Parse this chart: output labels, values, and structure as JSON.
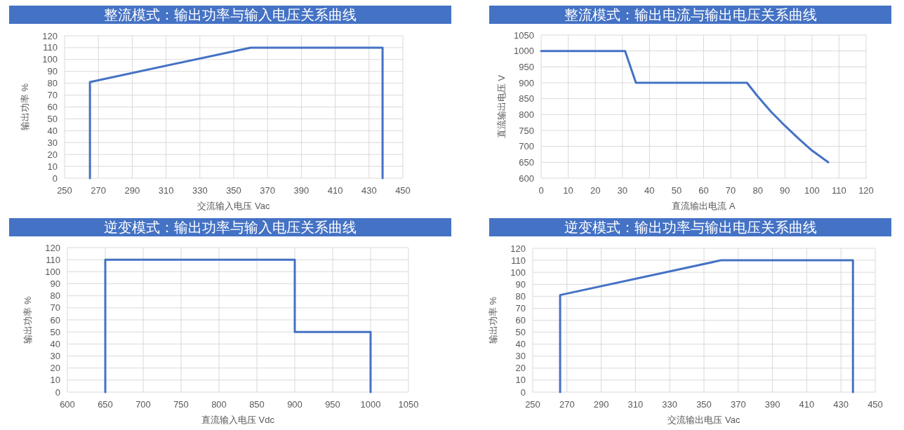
{
  "chart_data": [
    {
      "type": "line",
      "title": "整流模式：输出功率与输入电压关系曲线",
      "xlabel": "交流输入电压 Vac",
      "ylabel": "输出功率 %",
      "color": "#4472c4",
      "grid": true,
      "x": [
        265,
        265,
        360,
        438,
        438
      ],
      "values": [
        0,
        81,
        110,
        110,
        0
      ],
      "xlim": [
        250,
        450
      ],
      "ylim": [
        0,
        120
      ],
      "xticks": [
        250,
        270,
        290,
        310,
        330,
        350,
        370,
        390,
        410,
        430,
        450
      ],
      "yticks": [
        0,
        10,
        20,
        30,
        40,
        50,
        60,
        70,
        80,
        90,
        100,
        110,
        120
      ]
    },
    {
      "type": "line",
      "title": "整流模式：输出电流与输出电压关系曲线",
      "xlabel": "直流输出电流 A",
      "ylabel": "直流输出电压 V",
      "color": "#4472c4",
      "grid": true,
      "x": [
        0,
        31,
        35,
        76,
        80,
        85,
        90,
        95,
        100,
        106
      ],
      "values": [
        1000,
        1000,
        900,
        900,
        857,
        808,
        765,
        725,
        687,
        650
      ],
      "xlim": [
        0,
        120
      ],
      "ylim": [
        600,
        1050
      ],
      "xticks": [
        0,
        10,
        20,
        30,
        40,
        50,
        60,
        70,
        80,
        90,
        100,
        110,
        120
      ],
      "yticks": [
        600,
        650,
        700,
        750,
        800,
        850,
        900,
        950,
        1000,
        1050
      ]
    },
    {
      "type": "line",
      "title": "逆变模式：输出功率与输入电压关系曲线",
      "xlabel": "直流输入电压 Vdc",
      "ylabel": "输出功率 %",
      "color": "#4472c4",
      "grid": true,
      "x": [
        650,
        650,
        900,
        900,
        1000,
        1000
      ],
      "values": [
        0,
        110,
        110,
        50,
        50,
        0
      ],
      "xlim": [
        600,
        1050
      ],
      "ylim": [
        0,
        120
      ],
      "xticks": [
        600,
        650,
        700,
        750,
        800,
        850,
        900,
        950,
        1000,
        1050
      ],
      "yticks": [
        0,
        10,
        20,
        30,
        40,
        50,
        60,
        70,
        80,
        90,
        100,
        110,
        120
      ]
    },
    {
      "type": "line",
      "title": "逆变模式：输出功率与输出电压关系曲线",
      "xlabel": "交流输出电压 Vac",
      "ylabel": "输出功率 %",
      "color": "#4472c4",
      "grid": true,
      "x": [
        266,
        266,
        360,
        437,
        437
      ],
      "values": [
        0,
        81,
        110,
        110,
        0
      ],
      "xlim": [
        250,
        450
      ],
      "ylim": [
        0,
        120
      ],
      "xticks": [
        250,
        270,
        290,
        310,
        330,
        350,
        370,
        390,
        410,
        430,
        450
      ],
      "yticks": [
        0,
        10,
        20,
        30,
        40,
        50,
        60,
        70,
        80,
        90,
        100,
        110,
        120
      ]
    }
  ]
}
